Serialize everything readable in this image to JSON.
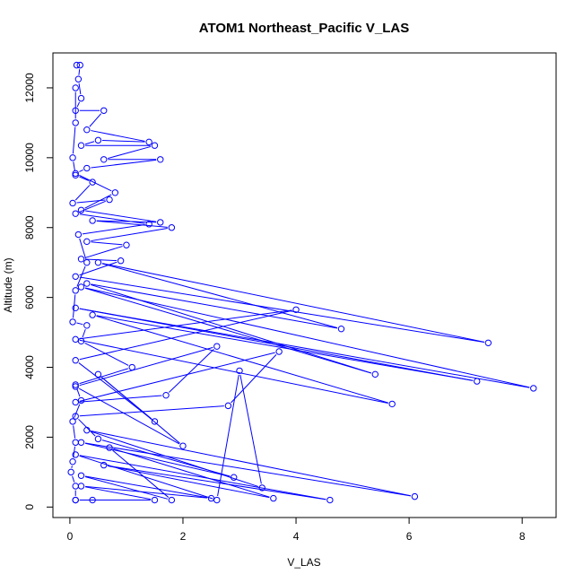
{
  "chart_data": {
    "type": "line",
    "title": "ATOM1 Northeast_Pacific V_LAS",
    "xlabel": "V_LAS",
    "ylabel": "Altitude (m)",
    "xlim": [
      -0.3,
      8.6
    ],
    "ylim": [
      -300,
      13000
    ],
    "x_ticks": [
      0,
      2,
      4,
      6,
      8
    ],
    "y_ticks": [
      0,
      2000,
      4000,
      6000,
      8000,
      10000,
      12000
    ],
    "grid": false,
    "series_color": "#0000ff",
    "series": [
      {
        "values": [
          [
            0.12,
            12650
          ],
          [
            0.18,
            12650
          ],
          [
            0.15,
            12250
          ],
          [
            0.2,
            11700
          ],
          [
            0.1,
            11350
          ],
          [
            0.6,
            11350
          ],
          [
            0.3,
            10800
          ],
          [
            1.4,
            10450
          ],
          [
            0.5,
            10500
          ],
          [
            0.2,
            10350
          ],
          [
            1.5,
            10350
          ],
          [
            0.6,
            9950
          ],
          [
            1.6,
            9950
          ],
          [
            0.3,
            9700
          ],
          [
            0.1,
            9550
          ],
          [
            0.8,
            9000
          ],
          [
            0.2,
            8500
          ],
          [
            1.6,
            8150
          ],
          [
            0.4,
            8200
          ],
          [
            1.8,
            8000
          ],
          [
            0.3,
            7600
          ],
          [
            1.0,
            7500
          ],
          [
            0.2,
            7100
          ],
          [
            0.9,
            7050
          ],
          [
            0.1,
            6600
          ],
          [
            7.4,
            4700
          ],
          [
            0.5,
            7000
          ],
          [
            4.8,
            5100
          ],
          [
            0.3,
            6400
          ],
          [
            5.4,
            3800
          ],
          [
            0.2,
            6300
          ],
          [
            8.2,
            3400
          ],
          [
            0.1,
            5700
          ],
          [
            7.2,
            3600
          ],
          [
            0.4,
            5500
          ],
          [
            5.7,
            2950
          ],
          [
            0.1,
            4800
          ],
          [
            4.0,
            5650
          ],
          [
            0.1,
            4200
          ],
          [
            1.5,
            2450
          ],
          [
            0.5,
            3800
          ],
          [
            2.0,
            1750
          ],
          [
            0.1,
            3450
          ],
          [
            2.6,
            4600
          ],
          [
            1.7,
            3200
          ],
          [
            0.1,
            3000
          ],
          [
            3.7,
            4450
          ],
          [
            2.8,
            2900
          ],
          [
            0.1,
            2600
          ],
          [
            0.5,
            1950
          ],
          [
            2.9,
            850
          ],
          [
            0.2,
            1850
          ],
          [
            6.1,
            300
          ],
          [
            0.3,
            2200
          ],
          [
            3.4,
            550
          ],
          [
            3.0,
            3900
          ],
          [
            2.6,
            200
          ],
          [
            0.1,
            1500
          ],
          [
            4.6,
            200
          ],
          [
            0.6,
            1200
          ],
          [
            3.6,
            250
          ],
          [
            0.7,
            1700
          ],
          [
            1.8,
            200
          ],
          [
            0.2,
            900
          ],
          [
            2.5,
            250
          ],
          [
            0.2,
            600
          ],
          [
            1.5,
            200
          ],
          [
            0.1,
            200
          ]
        ]
      },
      {
        "values": [
          [
            0.1,
            12000
          ],
          [
            0.1,
            11000
          ],
          [
            0.05,
            10000
          ],
          [
            0.1,
            9500
          ],
          [
            0.4,
            9300
          ],
          [
            0.05,
            8700
          ],
          [
            0.7,
            8800
          ],
          [
            0.1,
            8400
          ],
          [
            1.4,
            8100
          ],
          [
            0.15,
            7800
          ],
          [
            0.3,
            7000
          ],
          [
            0.1,
            6200
          ],
          [
            0.05,
            5300
          ],
          [
            0.3,
            5200
          ],
          [
            0.2,
            4750
          ],
          [
            1.1,
            4000
          ],
          [
            0.1,
            3500
          ],
          [
            0.2,
            3050
          ],
          [
            0.05,
            2450
          ],
          [
            0.1,
            1850
          ],
          [
            0.05,
            1300
          ],
          [
            0.02,
            1000
          ],
          [
            0.1,
            600
          ],
          [
            0.1,
            200
          ],
          [
            0.4,
            200
          ]
        ]
      }
    ]
  }
}
